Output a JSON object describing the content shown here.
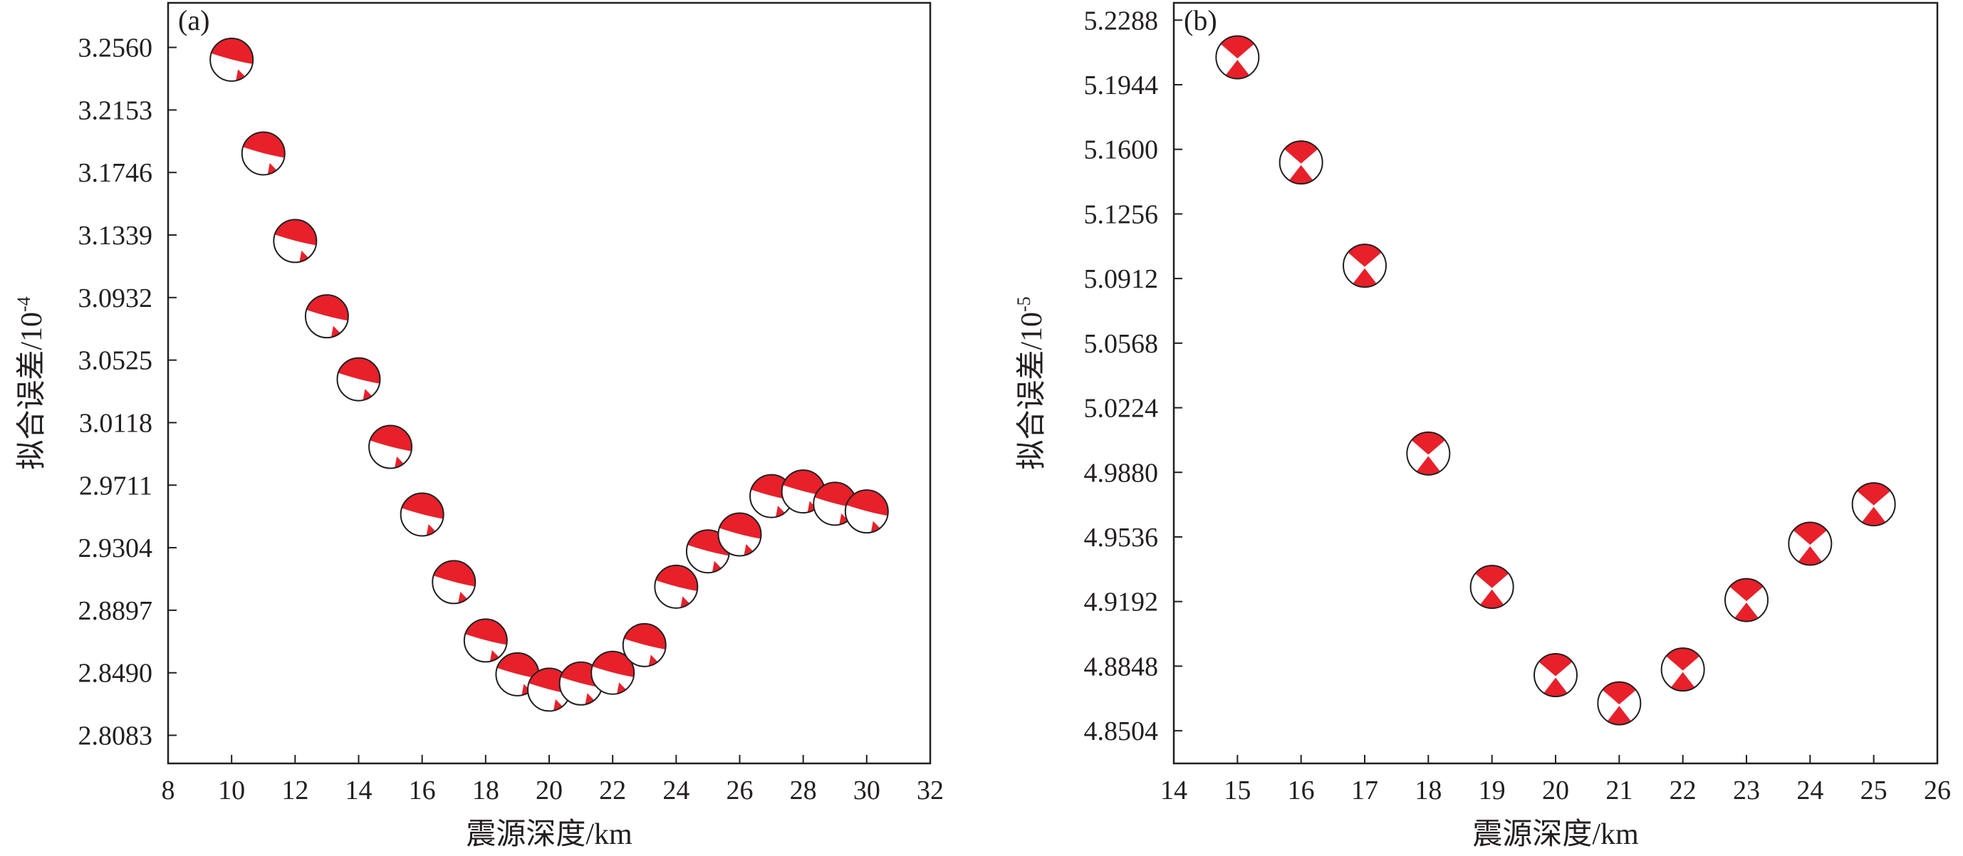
{
  "chart_data": [
    {
      "type": "scatter",
      "panel_label": "(a)",
      "xlabel": "震源深度/km",
      "ylabel": "拟合误差/10",
      "ylabel_exponent": "-4",
      "xlim": [
        8,
        32
      ],
      "ylim": [
        2.79,
        3.285
      ],
      "x_ticks": [
        "8",
        "10",
        "12",
        "14",
        "16",
        "18",
        "20",
        "22",
        "24",
        "26",
        "28",
        "30",
        "32"
      ],
      "y_ticks": [
        "2.8083",
        "2.8490",
        "2.8897",
        "2.9304",
        "2.9711",
        "3.0118",
        "3.0525",
        "3.0932",
        "3.1339",
        "3.1746",
        "3.2153",
        "3.2560"
      ],
      "grid": false,
      "marker": "focal-mechanism beach ball",
      "colors": {
        "fill": "#e8202a",
        "background": "#ffffff",
        "outline": "#231f20"
      },
      "points": [
        {
          "x": 10,
          "y": 3.248
        },
        {
          "x": 11,
          "y": 3.187
        },
        {
          "x": 12,
          "y": 3.13
        },
        {
          "x": 13,
          "y": 3.081
        },
        {
          "x": 14,
          "y": 3.04
        },
        {
          "x": 15,
          "y": 2.996
        },
        {
          "x": 16,
          "y": 2.952
        },
        {
          "x": 17,
          "y": 2.908
        },
        {
          "x": 18,
          "y": 2.87
        },
        {
          "x": 19,
          "y": 2.848
        },
        {
          "x": 20,
          "y": 2.838
        },
        {
          "x": 21,
          "y": 2.842
        },
        {
          "x": 22,
          "y": 2.849
        },
        {
          "x": 23,
          "y": 2.867
        },
        {
          "x": 24,
          "y": 2.905
        },
        {
          "x": 25,
          "y": 2.928
        },
        {
          "x": 26,
          "y": 2.939
        },
        {
          "x": 27,
          "y": 2.964
        },
        {
          "x": 28,
          "y": 2.967
        },
        {
          "x": 29,
          "y": 2.959
        },
        {
          "x": 30,
          "y": 2.954
        }
      ]
    },
    {
      "type": "scatter",
      "panel_label": "(b)",
      "xlabel": "震源深度/km",
      "ylabel": "拟合误差/10",
      "ylabel_exponent": "-5",
      "xlim": [
        14,
        26
      ],
      "ylim": [
        4.833,
        5.238
      ],
      "x_ticks": [
        "14",
        "15",
        "16",
        "17",
        "18",
        "19",
        "20",
        "21",
        "22",
        "23",
        "24",
        "25",
        "26"
      ],
      "y_ticks": [
        "4.8504",
        "4.8848",
        "4.9192",
        "4.9536",
        "4.9880",
        "5.0224",
        "5.0568",
        "5.0912",
        "5.1256",
        "5.1600",
        "5.1944",
        "5.2288"
      ],
      "grid": false,
      "marker": "focal-mechanism beach ball",
      "colors": {
        "fill": "#e8202a",
        "background": "#ffffff",
        "outline": "#231f20"
      },
      "points": [
        {
          "x": 15,
          "y": 5.209
        },
        {
          "x": 16,
          "y": 5.153
        },
        {
          "x": 17,
          "y": 5.098
        },
        {
          "x": 18,
          "y": 4.998
        },
        {
          "x": 19,
          "y": 4.927
        },
        {
          "x": 20,
          "y": 4.88
        },
        {
          "x": 21,
          "y": 4.865
        },
        {
          "x": 22,
          "y": 4.883
        },
        {
          "x": 23,
          "y": 4.92
        },
        {
          "x": 24,
          "y": 4.95
        },
        {
          "x": 25,
          "y": 4.971
        }
      ]
    }
  ]
}
